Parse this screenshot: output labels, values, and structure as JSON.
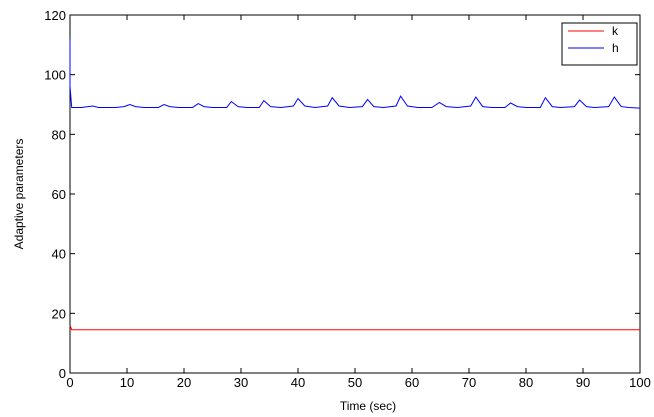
{
  "chart_data": {
    "type": "line",
    "title": "",
    "xlabel": "Time (sec)",
    "ylabel": "Adaptive parameters",
    "xlim": [
      0,
      100
    ],
    "ylim": [
      0,
      120
    ],
    "xticks": [
      0,
      10,
      20,
      30,
      40,
      50,
      60,
      70,
      80,
      90,
      100
    ],
    "yticks": [
      0,
      20,
      40,
      60,
      80,
      100,
      120
    ],
    "grid": false,
    "legend_position": "top-right",
    "series": [
      {
        "name": "k",
        "color": "#ff0000",
        "x": [
          0,
          0.3,
          100
        ],
        "y": [
          16,
          14.5,
          14.5
        ]
      },
      {
        "name": "h",
        "color": "#0000ff",
        "x": [
          0,
          0,
          0.3,
          2,
          4,
          5,
          6,
          8,
          9.5,
          10.5,
          11.5,
          13,
          15.5,
          16.5,
          17.5,
          19,
          21.5,
          22.5,
          23.5,
          25,
          27.5,
          28.3,
          29.5,
          31,
          33.2,
          34,
          35.2,
          37,
          39.2,
          40,
          41.2,
          43,
          45.2,
          46,
          47.2,
          49,
          51.3,
          52.2,
          53.3,
          55,
          57.2,
          58,
          59.2,
          61,
          63.5,
          64.8,
          66,
          68,
          70.3,
          71.2,
          72.4,
          74,
          76.3,
          77.3,
          78.5,
          80,
          82.5,
          83.4,
          84.6,
          86,
          88.5,
          89.4,
          90.6,
          92,
          94.5,
          95.5,
          96.7,
          98,
          100
        ],
        "y": [
          112,
          96,
          89,
          89,
          89.5,
          89,
          89,
          89,
          89.3,
          90,
          89.3,
          89,
          89,
          90,
          89.3,
          89,
          89,
          90.3,
          89.3,
          89,
          89,
          91,
          89.3,
          89,
          89,
          91.3,
          89.3,
          89,
          89.5,
          92,
          89.5,
          89,
          89.5,
          92.3,
          89.5,
          89,
          89.3,
          91.7,
          89.3,
          89,
          89.5,
          92.8,
          89.5,
          89,
          89,
          90.7,
          89.3,
          89,
          89.5,
          92.5,
          89.3,
          89,
          89,
          90.5,
          89.3,
          89,
          89,
          92.3,
          89.3,
          89,
          89.3,
          91.5,
          89.3,
          89,
          89.3,
          92.5,
          89.3,
          89,
          88.8
        ]
      }
    ]
  }
}
